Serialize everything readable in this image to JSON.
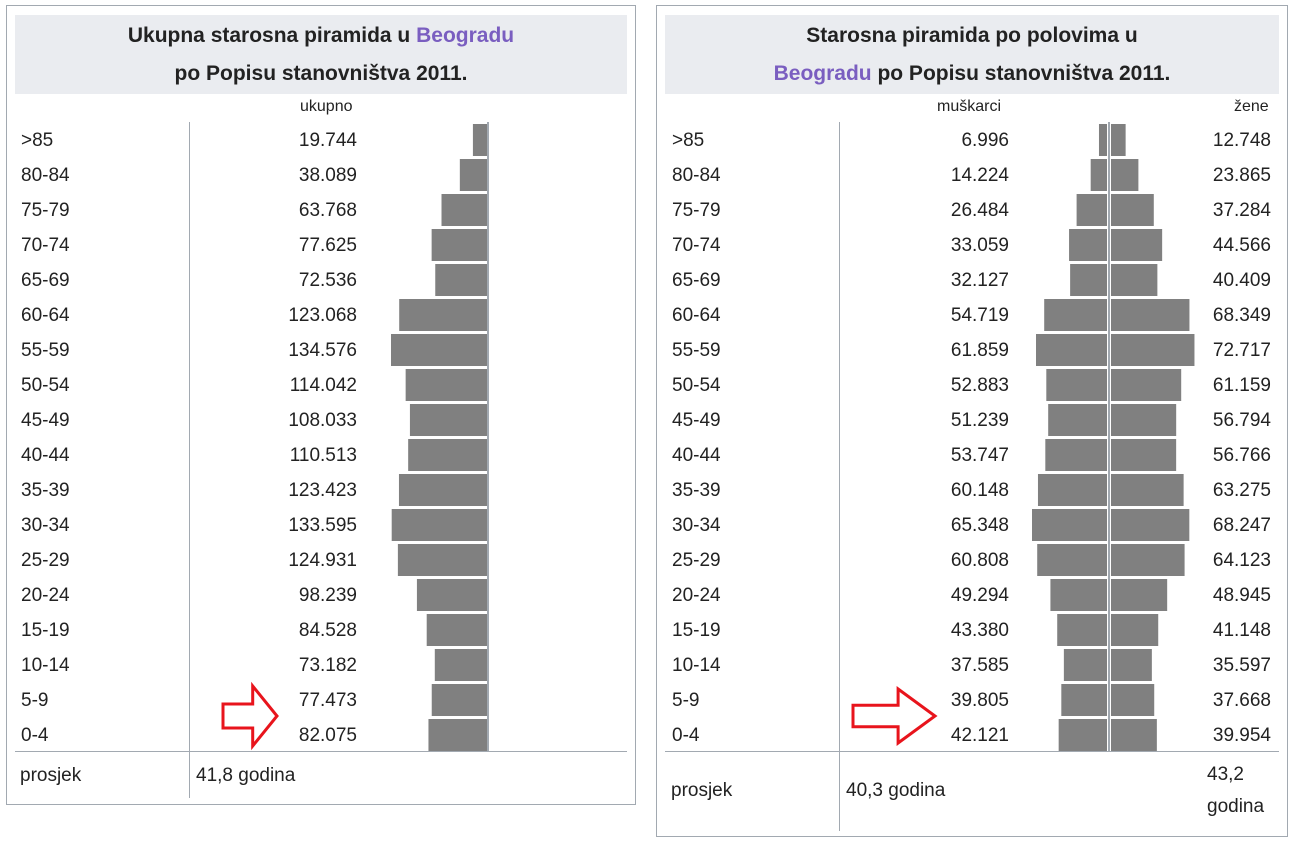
{
  "panels": {
    "total": {
      "title_pre": "Ukupna starosna piramida u ",
      "title_city": "Beogradu",
      "title_line2": "po Popisu stanovništva 2011.",
      "col_total": "ukupno",
      "avg_label": "prosjek",
      "avg_value": "41,8 godina"
    },
    "gender": {
      "title_line1": "Starosna piramida po polovima u",
      "title_city": "Beogradu",
      "title_post": " po Popisu stanovništva 2011.",
      "col_male": "muškarci",
      "col_female": "žene",
      "avg_label": "prosjek",
      "avg_male": "40,3 godina",
      "avg_female_1": "43,2",
      "avg_female_2": "godina"
    }
  },
  "colors": {
    "bar": "#808080",
    "arrow": "#e8141c",
    "accent": "#7a5ec0",
    "header_bg": "#eaecf0"
  },
  "chart_data": [
    {
      "type": "bar",
      "categories": [
        ">85",
        "80-84",
        "75-79",
        "70-74",
        "65-69",
        "60-64",
        "55-59",
        "50-54",
        "45-49",
        "40-44",
        "35-39",
        "30-34",
        "25-29",
        "20-24",
        "15-19",
        "10-14",
        "5-9",
        "0-4"
      ],
      "labels": [
        "19.744",
        "38.089",
        "63.768",
        "77.625",
        "72.536",
        "123.068",
        "134.576",
        "114.042",
        "108.033",
        "110.513",
        "123.423",
        "133.595",
        "124.931",
        "98.239",
        "84.528",
        "73.182",
        "77.473",
        "82.075"
      ],
      "values": [
        19744,
        38089,
        63768,
        77625,
        72536,
        123068,
        134576,
        114042,
        108033,
        110513,
        123423,
        133595,
        124931,
        98239,
        84528,
        73182,
        77473,
        82075
      ],
      "title": "Ukupna starosna piramida u Beogradu po Popisu stanovništva 2011."
    },
    {
      "type": "bar",
      "categories": [
        ">85",
        "80-84",
        "75-79",
        "70-74",
        "65-69",
        "60-64",
        "55-59",
        "50-54",
        "45-49",
        "40-44",
        "35-39",
        "30-34",
        "25-29",
        "20-24",
        "15-19",
        "10-14",
        "5-9",
        "0-4"
      ],
      "series": [
        {
          "name": "muškarci",
          "labels": [
            "6.996",
            "14.224",
            "26.484",
            "33.059",
            "32.127",
            "54.719",
            "61.859",
            "52.883",
            "51.239",
            "53.747",
            "60.148",
            "65.348",
            "60.808",
            "49.294",
            "43.380",
            "37.585",
            "39.805",
            "42.121"
          ],
          "values": [
            6996,
            14224,
            26484,
            33059,
            32127,
            54719,
            61859,
            52883,
            51239,
            53747,
            60148,
            65348,
            60808,
            49294,
            43380,
            37585,
            39805,
            42121
          ]
        },
        {
          "name": "žene",
          "labels": [
            "12.748",
            "23.865",
            "37.284",
            "44.566",
            "40.409",
            "68.349",
            "72.717",
            "61.159",
            "56.794",
            "56.766",
            "63.275",
            "68.247",
            "64.123",
            "48.945",
            "41.148",
            "35.597",
            "37.668",
            "39.954"
          ],
          "values": [
            12748,
            23865,
            37284,
            44566,
            40409,
            68349,
            72717,
            61159,
            56794,
            56766,
            63275,
            68247,
            64123,
            48945,
            41148,
            35597,
            37668,
            39954
          ]
        }
      ],
      "title": "Starosna piramida po polovima u Beogradu po Popisu stanovništva 2011."
    }
  ]
}
